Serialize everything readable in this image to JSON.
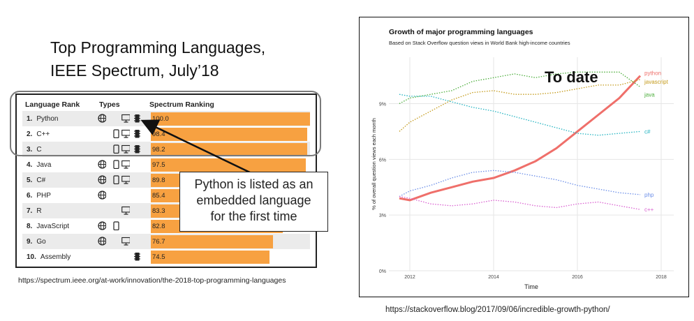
{
  "left_title": [
    "Top Programming Languages,",
    "IEEE Spectrum, July’18"
  ],
  "table": {
    "headers": [
      "Language Rank",
      "Types",
      "Spectrum Ranking"
    ],
    "rows": [
      {
        "rank": "1.",
        "name": "Python",
        "score": "100.0",
        "value": 100.0,
        "icons": [
          "web",
          "desktop",
          "embedded"
        ]
      },
      {
        "rank": "2.",
        "name": "C++",
        "score": "98.4",
        "value": 98.4,
        "icons": [
          "mobile",
          "desktop",
          "embedded"
        ]
      },
      {
        "rank": "3.",
        "name": "C",
        "score": "98.2",
        "value": 98.2,
        "icons": [
          "mobile",
          "desktop",
          "embedded"
        ]
      },
      {
        "rank": "4.",
        "name": "Java",
        "score": "97.5",
        "value": 97.5,
        "icons": [
          "web",
          "mobile",
          "desktop"
        ]
      },
      {
        "rank": "5.",
        "name": "C#",
        "score": "89.8",
        "value": 89.8,
        "icons": [
          "web",
          "mobile",
          "desktop"
        ]
      },
      {
        "rank": "6.",
        "name": "PHP",
        "score": "85.4",
        "value": 85.4,
        "icons": [
          "web"
        ]
      },
      {
        "rank": "7.",
        "name": "R",
        "score": "83.3",
        "value": 83.3,
        "icons": [
          "desktop"
        ]
      },
      {
        "rank": "8.",
        "name": "JavaScript",
        "score": "82.8",
        "value": 82.8,
        "icons": [
          "web",
          "mobile"
        ]
      },
      {
        "rank": "9.",
        "name": "Go",
        "score": "76.7",
        "value": 76.7,
        "icons": [
          "web",
          "desktop"
        ]
      },
      {
        "rank": "10.",
        "name": "Assembly",
        "score": "74.5",
        "value": 74.5,
        "icons": [
          "embedded"
        ]
      }
    ],
    "bar_color": "#f7a141"
  },
  "callout": [
    "Python is listed as an",
    "embedded language",
    "for the first time"
  ],
  "left_link": "https://spectrum.ieee.org/at-work/innovation/the-2018-top-programming-languages",
  "right_link": "https://stackoverflow.blog/2017/09/06/incredible-growth-python/",
  "to_date": "To date",
  "chart_data": {
    "type": "line",
    "title": "Growth of major programming languages",
    "subtitle": "Based on Stack Overflow question views in World Bank high-income countries",
    "xlabel": "Time",
    "ylabel": "% of overall question views each month",
    "xlim": [
      2011.5,
      2018.3
    ],
    "ylim": [
      0,
      11.5
    ],
    "x_ticks": [
      2012,
      2014,
      2016,
      2018
    ],
    "y_ticks": [
      0,
      3,
      6,
      9
    ],
    "y_tick_labels": [
      "0%",
      "3%",
      "6%",
      "9%"
    ],
    "grid": true,
    "series": [
      {
        "name": "python",
        "color": "#ef6f6a",
        "style": "solid",
        "x": [
          2011.75,
          2012.0,
          2012.5,
          2013.0,
          2013.5,
          2014.0,
          2014.5,
          2015.0,
          2015.5,
          2016.0,
          2016.5,
          2017.0,
          2017.5
        ],
        "y": [
          3.9,
          3.8,
          4.2,
          4.5,
          4.8,
          5.0,
          5.4,
          5.9,
          6.6,
          7.5,
          8.4,
          9.3,
          10.5
        ]
      },
      {
        "name": "javascript",
        "color": "#c49a1a",
        "style": "dotted",
        "x": [
          2011.75,
          2012.0,
          2012.5,
          2013.0,
          2013.5,
          2014.0,
          2014.5,
          2015.0,
          2015.5,
          2016.0,
          2016.5,
          2017.0,
          2017.5
        ],
        "y": [
          7.5,
          8.0,
          8.6,
          9.2,
          9.6,
          9.7,
          9.5,
          9.5,
          9.6,
          9.8,
          10.0,
          10.0,
          10.3
        ]
      },
      {
        "name": "java",
        "color": "#4cae3c",
        "style": "dotted",
        "x": [
          2011.75,
          2012.0,
          2012.5,
          2013.0,
          2013.5,
          2014.0,
          2014.5,
          2015.0,
          2015.5,
          2016.0,
          2016.5,
          2017.0,
          2017.5
        ],
        "y": [
          9.0,
          9.3,
          9.5,
          9.7,
          10.2,
          10.4,
          10.6,
          10.4,
          10.6,
          10.7,
          10.7,
          10.7,
          9.9
        ]
      },
      {
        "name": "c#",
        "color": "#22b3c1",
        "style": "dotted",
        "x": [
          2011.75,
          2012.0,
          2012.5,
          2013.0,
          2013.5,
          2014.0,
          2014.5,
          2015.0,
          2015.5,
          2016.0,
          2016.5,
          2017.0,
          2017.5
        ],
        "y": [
          9.5,
          9.4,
          9.4,
          9.1,
          8.8,
          8.6,
          8.3,
          8.0,
          7.7,
          7.4,
          7.3,
          7.4,
          7.5
        ]
      },
      {
        "name": "php",
        "color": "#6b8ee8",
        "style": "dotted",
        "x": [
          2011.75,
          2012.0,
          2012.5,
          2013.0,
          2013.5,
          2014.0,
          2014.5,
          2015.0,
          2015.5,
          2016.0,
          2016.5,
          2017.0,
          2017.5
        ],
        "y": [
          4.0,
          4.3,
          4.6,
          5.0,
          5.3,
          5.4,
          5.3,
          5.1,
          4.9,
          4.6,
          4.4,
          4.2,
          4.1
        ]
      },
      {
        "name": "c++",
        "color": "#d95fd0",
        "style": "dotted",
        "x": [
          2011.75,
          2012.0,
          2012.5,
          2013.0,
          2013.5,
          2014.0,
          2014.5,
          2015.0,
          2015.5,
          2016.0,
          2016.5,
          2017.0,
          2017.5
        ],
        "y": [
          4.0,
          3.9,
          3.6,
          3.5,
          3.6,
          3.8,
          3.7,
          3.5,
          3.4,
          3.6,
          3.7,
          3.5,
          3.3
        ]
      }
    ]
  }
}
